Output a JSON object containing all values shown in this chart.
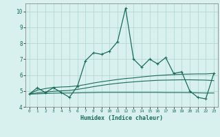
{
  "xlabel": "Humidex (Indice chaleur)",
  "x": [
    0,
    1,
    2,
    3,
    4,
    5,
    6,
    7,
    8,
    9,
    10,
    11,
    12,
    13,
    14,
    15,
    16,
    17,
    18,
    19,
    20,
    21,
    22,
    23
  ],
  "y_main": [
    4.8,
    5.2,
    4.9,
    5.2,
    4.9,
    4.6,
    5.3,
    6.9,
    7.4,
    7.3,
    7.5,
    8.1,
    10.2,
    7.0,
    6.5,
    7.0,
    6.7,
    7.1,
    6.1,
    6.2,
    5.0,
    4.6,
    4.5,
    6.1
  ],
  "y_line1": [
    4.8,
    5.05,
    5.15,
    5.22,
    5.25,
    5.27,
    5.32,
    5.4,
    5.5,
    5.58,
    5.65,
    5.72,
    5.78,
    5.82,
    5.88,
    5.93,
    5.97,
    6.0,
    6.03,
    6.05,
    6.06,
    6.07,
    6.07,
    6.1
  ],
  "y_line2": [
    4.8,
    4.88,
    4.93,
    4.98,
    5.01,
    5.03,
    5.1,
    5.18,
    5.27,
    5.35,
    5.42,
    5.48,
    5.53,
    5.57,
    5.61,
    5.64,
    5.67,
    5.68,
    5.69,
    5.7,
    5.7,
    5.69,
    5.68,
    5.65
  ],
  "y_line3": [
    4.8,
    4.82,
    4.84,
    4.86,
    4.87,
    4.87,
    4.88,
    4.89,
    4.9,
    4.91,
    4.91,
    4.91,
    4.91,
    4.91,
    4.91,
    4.91,
    4.91,
    4.9,
    4.9,
    4.9,
    4.89,
    4.88,
    4.87,
    4.87
  ],
  "color": "#1a6b5a",
  "bg_color": "#d8f0ee",
  "grid_color": "#aed4cc",
  "ylim": [
    4,
    10.5
  ],
  "xlim": [
    -0.5,
    23.5
  ],
  "yticks": [
    4,
    5,
    6,
    7,
    8,
    9,
    10
  ],
  "xticks": [
    0,
    1,
    2,
    3,
    4,
    5,
    6,
    7,
    8,
    9,
    10,
    11,
    12,
    13,
    14,
    15,
    16,
    17,
    18,
    19,
    20,
    21,
    22,
    23
  ]
}
